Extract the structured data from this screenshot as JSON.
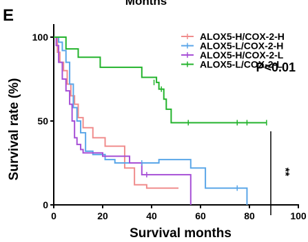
{
  "top_cut_text": "Months",
  "panel_letter": "E",
  "chart_data": {
    "type": "line",
    "subtype": "kaplan-meier",
    "xlabel": "Survival months",
    "ylabel": "Survival rate (%)",
    "xlim": [
      0,
      100
    ],
    "ylim": [
      0,
      100
    ],
    "x_ticks": [
      0,
      20,
      40,
      60,
      80,
      100
    ],
    "y_ticks": [
      0,
      50,
      100
    ],
    "grid": false,
    "legend_position": "top-right",
    "annotation": "P<0.01",
    "significance": "**",
    "series": [
      {
        "name": "ALOX5-H/COX-2-H",
        "color": "#f08c8c",
        "points": [
          [
            0,
            100
          ],
          [
            1.5,
            91
          ],
          [
            2.5,
            85
          ],
          [
            4,
            80
          ],
          [
            5.5,
            72
          ],
          [
            7,
            65
          ],
          [
            8.5,
            60
          ],
          [
            10,
            52
          ],
          [
            12,
            46
          ],
          [
            16,
            40
          ],
          [
            21,
            35
          ],
          [
            25,
            35
          ],
          [
            29,
            22
          ],
          [
            33,
            12
          ],
          [
            38,
            10
          ],
          [
            45,
            10
          ],
          [
            51,
            10
          ]
        ],
        "censored": []
      },
      {
        "name": "ALOX5-L/COX-2-H",
        "color": "#5aa6e8",
        "points": [
          [
            0,
            100
          ],
          [
            2,
            97
          ],
          [
            3.5,
            92
          ],
          [
            5,
            85
          ],
          [
            6.5,
            72
          ],
          [
            8,
            58
          ],
          [
            9.5,
            50
          ],
          [
            11,
            43
          ],
          [
            13,
            32
          ],
          [
            16,
            30
          ],
          [
            21,
            27
          ],
          [
            25,
            25
          ],
          [
            36,
            25
          ],
          [
            41,
            25
          ],
          [
            43,
            27
          ],
          [
            54,
            27
          ],
          [
            56,
            22
          ],
          [
            62,
            10
          ],
          [
            79,
            0
          ]
        ],
        "censored": [
          [
            36,
            25
          ],
          [
            75,
            10
          ]
        ]
      },
      {
        "name": "ALOX5-H/COX-2-L",
        "color": "#a64fd6",
        "points": [
          [
            0,
            100
          ],
          [
            1,
            95
          ],
          [
            2,
            85
          ],
          [
            3.5,
            75
          ],
          [
            5,
            68
          ],
          [
            6.5,
            60
          ],
          [
            7.5,
            50
          ],
          [
            8.5,
            40
          ],
          [
            9.5,
            36
          ],
          [
            11,
            33
          ],
          [
            12,
            31
          ],
          [
            15,
            31
          ],
          [
            20,
            29
          ],
          [
            26,
            29
          ],
          [
            31,
            25
          ],
          [
            36,
            18
          ],
          [
            40,
            18
          ],
          [
            45,
            18
          ],
          [
            56,
            0
          ]
        ],
        "censored": [
          [
            38,
            18
          ]
        ]
      },
      {
        "name": "ALOX5-L/COX-2-L",
        "color": "#22b32b",
        "points": [
          [
            0,
            100
          ],
          [
            5,
            93
          ],
          [
            10,
            88
          ],
          [
            19,
            82
          ],
          [
            27,
            82
          ],
          [
            36,
            76
          ],
          [
            42,
            73
          ],
          [
            43,
            69
          ],
          [
            45,
            63
          ],
          [
            46,
            57
          ],
          [
            48,
            49
          ],
          [
            87,
            49
          ]
        ],
        "censored": [
          [
            41,
            73
          ],
          [
            44,
            69
          ],
          [
            55,
            49
          ],
          [
            75,
            49
          ],
          [
            79,
            49
          ],
          [
            87,
            49
          ]
        ]
      }
    ]
  }
}
